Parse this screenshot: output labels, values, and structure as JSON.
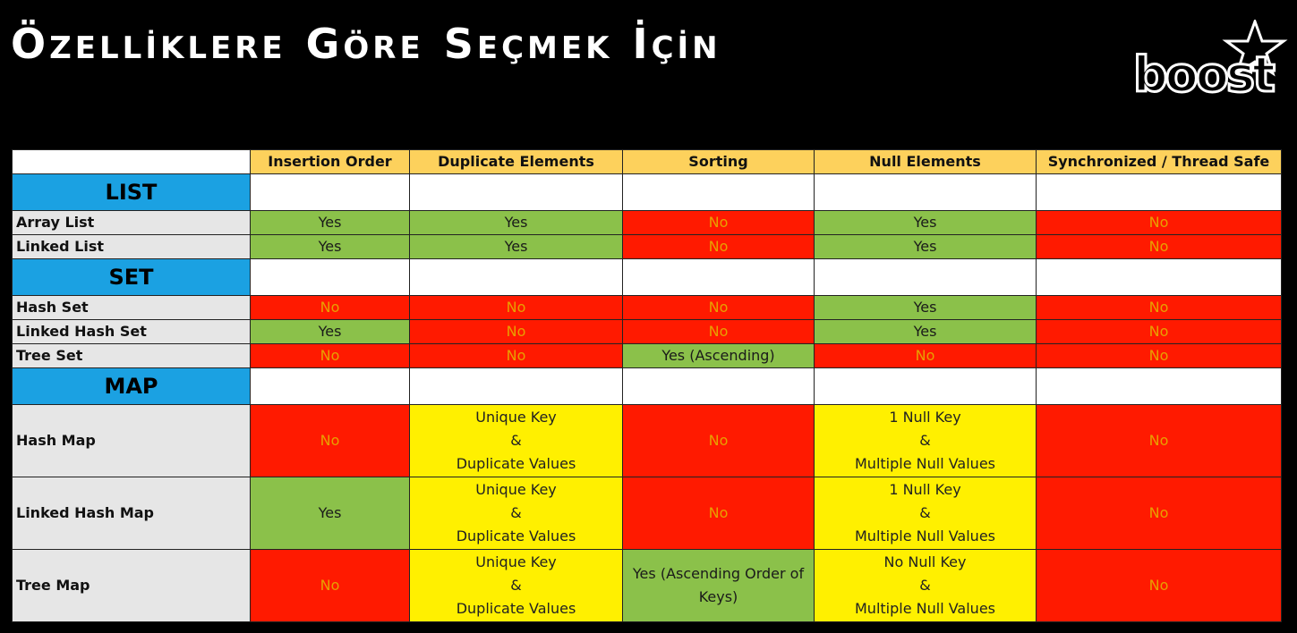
{
  "title": {
    "words": [
      {
        "big": "Ö",
        "rest": "ZELLİKLERE"
      },
      {
        "big": "G",
        "rest": "ÖRE"
      },
      {
        "big": "S",
        "rest": "EÇMEK"
      },
      {
        "big": "İ",
        "rest": "ÇİN"
      }
    ]
  },
  "logo": {
    "text": "boost"
  },
  "table": {
    "columns": [
      "Insertion Order",
      "Duplicate Elements",
      "Sorting",
      "Null Elements",
      "Synchronized / Thread Safe"
    ],
    "sections": [
      {
        "name": "LIST",
        "rows": [
          {
            "label": "Array List",
            "cells": [
              {
                "lines": [
                  "Yes"
                ],
                "color": "green"
              },
              {
                "lines": [
                  "Yes"
                ],
                "color": "green"
              },
              {
                "lines": [
                  "No"
                ],
                "color": "red"
              },
              {
                "lines": [
                  "Yes"
                ],
                "color": "green"
              },
              {
                "lines": [
                  "No"
                ],
                "color": "red"
              }
            ]
          },
          {
            "label": "Linked List",
            "cells": [
              {
                "lines": [
                  "Yes"
                ],
                "color": "green"
              },
              {
                "lines": [
                  "Yes"
                ],
                "color": "green"
              },
              {
                "lines": [
                  "No"
                ],
                "color": "red"
              },
              {
                "lines": [
                  "Yes"
                ],
                "color": "green"
              },
              {
                "lines": [
                  "No"
                ],
                "color": "red"
              }
            ]
          }
        ]
      },
      {
        "name": "SET",
        "rows": [
          {
            "label": "Hash Set",
            "cells": [
              {
                "lines": [
                  "No"
                ],
                "color": "red"
              },
              {
                "lines": [
                  "No"
                ],
                "color": "red"
              },
              {
                "lines": [
                  "No"
                ],
                "color": "red"
              },
              {
                "lines": [
                  "Yes"
                ],
                "color": "green"
              },
              {
                "lines": [
                  "No"
                ],
                "color": "red"
              }
            ]
          },
          {
            "label": "Linked Hash Set",
            "cells": [
              {
                "lines": [
                  "Yes"
                ],
                "color": "green"
              },
              {
                "lines": [
                  "No"
                ],
                "color": "red"
              },
              {
                "lines": [
                  "No"
                ],
                "color": "red"
              },
              {
                "lines": [
                  "Yes"
                ],
                "color": "green"
              },
              {
                "lines": [
                  "No"
                ],
                "color": "red"
              }
            ]
          },
          {
            "label": "Tree Set",
            "cells": [
              {
                "lines": [
                  "No"
                ],
                "color": "red"
              },
              {
                "lines": [
                  "No"
                ],
                "color": "red"
              },
              {
                "lines": [
                  "Yes (Ascending)"
                ],
                "color": "green"
              },
              {
                "lines": [
                  "No"
                ],
                "color": "red"
              },
              {
                "lines": [
                  "No"
                ],
                "color": "red"
              }
            ]
          }
        ]
      },
      {
        "name": "MAP",
        "rows": [
          {
            "label": "Hash Map",
            "cells": [
              {
                "lines": [
                  "No"
                ],
                "color": "red"
              },
              {
                "lines": [
                  "Unique Key",
                  "&",
                  "Duplicate Values"
                ],
                "color": "yellow"
              },
              {
                "lines": [
                  "No"
                ],
                "color": "red"
              },
              {
                "lines": [
                  "1 Null Key",
                  "&",
                  "Multiple Null Values"
                ],
                "color": "yellow"
              },
              {
                "lines": [
                  "No"
                ],
                "color": "red"
              }
            ]
          },
          {
            "label": "Linked Hash Map",
            "cells": [
              {
                "lines": [
                  "Yes"
                ],
                "color": "green"
              },
              {
                "lines": [
                  "Unique Key",
                  "&",
                  "Duplicate Values"
                ],
                "color": "yellow"
              },
              {
                "lines": [
                  "No"
                ],
                "color": "red"
              },
              {
                "lines": [
                  "1 Null Key",
                  "&",
                  "Multiple Null Values"
                ],
                "color": "yellow"
              },
              {
                "lines": [
                  "No"
                ],
                "color": "red"
              }
            ]
          },
          {
            "label": "Tree Map",
            "cells": [
              {
                "lines": [
                  "No"
                ],
                "color": "red"
              },
              {
                "lines": [
                  "Unique Key",
                  "&",
                  "Duplicate Values"
                ],
                "color": "yellow"
              },
              {
                "lines": [
                  "Yes (Ascending Order of",
                  "Keys)"
                ],
                "color": "green"
              },
              {
                "lines": [
                  "No Null Key",
                  "&",
                  "Multiple Null Values"
                ],
                "color": "yellow"
              },
              {
                "lines": [
                  "No"
                ],
                "color": "red"
              }
            ]
          }
        ]
      }
    ]
  }
}
